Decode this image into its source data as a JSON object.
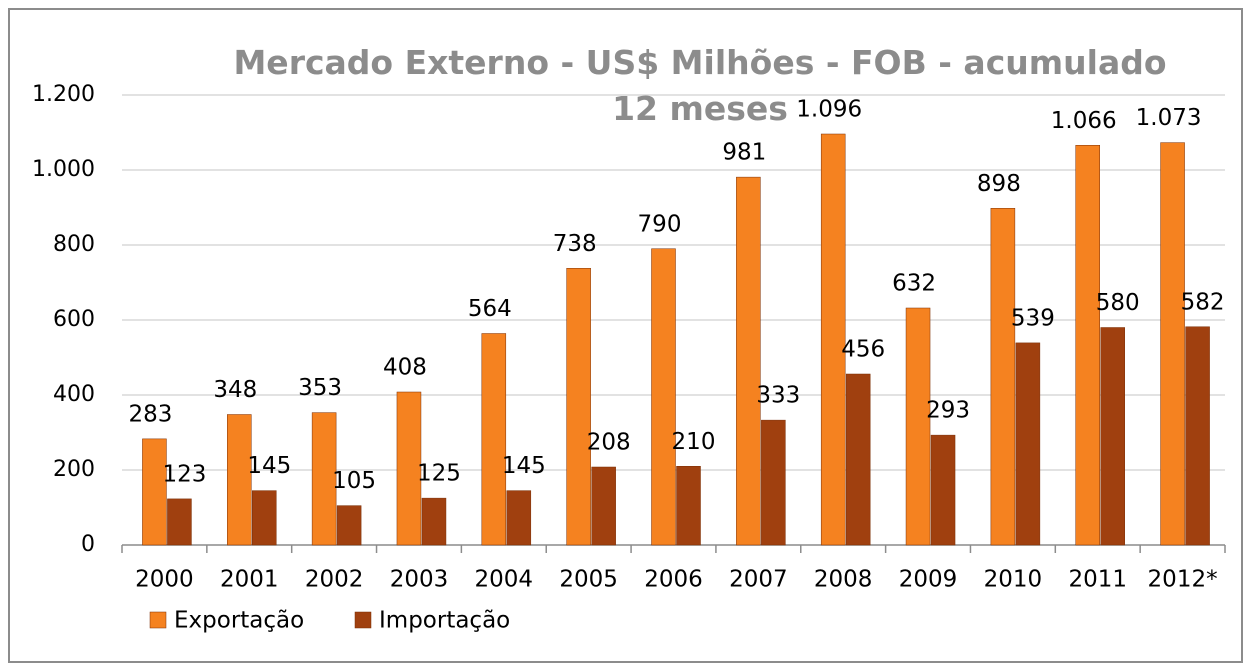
{
  "chart_data": {
    "type": "bar",
    "title": "Mercado Externo - US$ Milhões - FOB - acumulado 12 meses",
    "categories": [
      "2000",
      "2001",
      "2002",
      "2003",
      "2004",
      "2005",
      "2006",
      "2007",
      "2008",
      "2009",
      "2010",
      "2011",
      "2012*"
    ],
    "series": [
      {
        "name": "Exportação",
        "color": "#f58220",
        "values": [
          283,
          348,
          353,
          408,
          564,
          738,
          790,
          981,
          1096,
          632,
          898,
          1066,
          1073
        ],
        "value_labels": [
          "283",
          "348",
          "353",
          "408",
          "564",
          "738",
          "790",
          "981",
          "1.096",
          "632",
          "898",
          "1.066",
          "1.073"
        ]
      },
      {
        "name": "Importação",
        "color": "#a0400f",
        "values": [
          123,
          145,
          105,
          125,
          145,
          208,
          210,
          333,
          456,
          293,
          539,
          580,
          582
        ]
      }
    ],
    "ylim": [
      0,
      1200
    ],
    "yticks": [
      0,
      200,
      400,
      600,
      800,
      {
        "value": 1000,
        "label": "1.000"
      },
      {
        "value": 1200,
        "label": "1.200"
      }
    ],
    "grid": true,
    "legend": "bottom"
  }
}
